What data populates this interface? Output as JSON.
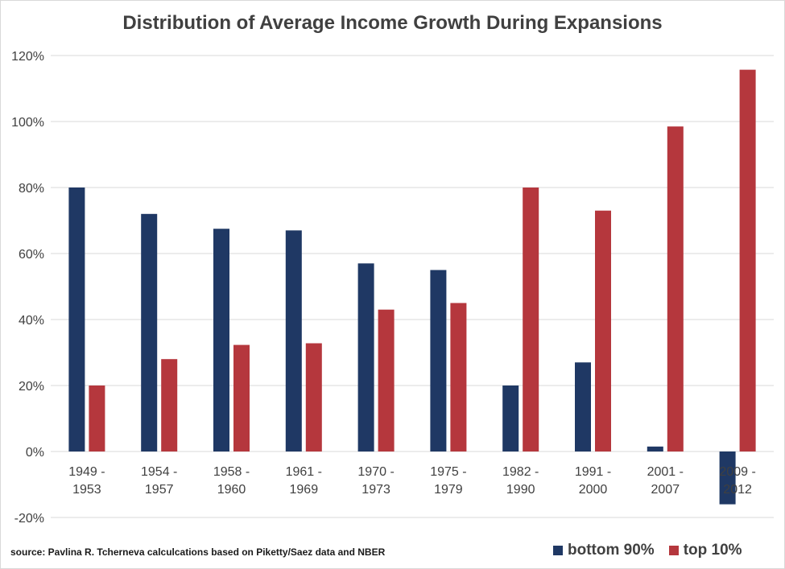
{
  "chart_data": {
    "type": "bar",
    "title": "Distribution of Average Income Growth During Expansions",
    "categories": [
      [
        "1949 -",
        "1953"
      ],
      [
        "1954 -",
        "1957"
      ],
      [
        "1958 -",
        "1960"
      ],
      [
        "1961 -",
        "1969"
      ],
      [
        "1970 -",
        "1973"
      ],
      [
        "1975 -",
        "1979"
      ],
      [
        "1982 -",
        "1990"
      ],
      [
        "1991 -",
        "2000"
      ],
      [
        "2001 -",
        "2007"
      ],
      [
        "2009 -",
        "2012"
      ]
    ],
    "series": [
      {
        "name": "bottom 90%",
        "color": "#1f3864",
        "values": [
          80,
          72,
          67.5,
          67,
          57,
          55,
          20,
          27,
          1.5,
          -16
        ]
      },
      {
        "name": "top 10%",
        "color": "#b5373d",
        "values": [
          20,
          28,
          32.3,
          32.8,
          43,
          45,
          80,
          73,
          98.5,
          115.7
        ]
      }
    ],
    "ylim": [
      -20,
      120
    ],
    "yticks": [
      -20,
      0,
      20,
      40,
      60,
      80,
      100,
      120
    ],
    "ytick_format": "percent",
    "grid": true,
    "legend_position": "bottom-right"
  },
  "source_note": "source: Pavlina R. Tcherneva calculcations based on Piketty/Saez data and NBER"
}
